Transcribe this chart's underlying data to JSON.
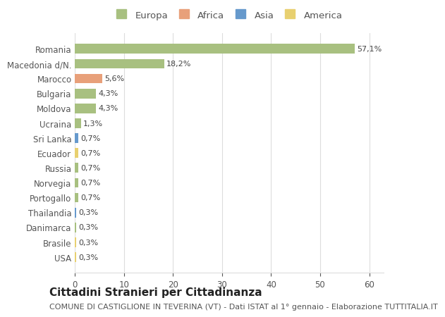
{
  "countries": [
    "Romania",
    "Macedonia d/N.",
    "Marocco",
    "Bulgaria",
    "Moldova",
    "Ucraina",
    "Sri Lanka",
    "Ecuador",
    "Russia",
    "Norvegia",
    "Portogallo",
    "Thailandia",
    "Danimarca",
    "Brasile",
    "USA"
  ],
  "values": [
    57.1,
    18.2,
    5.6,
    4.3,
    4.3,
    1.3,
    0.7,
    0.7,
    0.7,
    0.7,
    0.7,
    0.3,
    0.3,
    0.3,
    0.3
  ],
  "labels": [
    "57,1%",
    "18,2%",
    "5,6%",
    "4,3%",
    "4,3%",
    "1,3%",
    "0,7%",
    "0,7%",
    "0,7%",
    "0,7%",
    "0,7%",
    "0,3%",
    "0,3%",
    "0,3%",
    "0,3%"
  ],
  "colors": [
    "#a8c080",
    "#a8c080",
    "#e8a07a",
    "#a8c080",
    "#a8c080",
    "#a8c080",
    "#6699cc",
    "#e8d070",
    "#a8c080",
    "#a8c080",
    "#a8c080",
    "#6699cc",
    "#a8c080",
    "#e8d070",
    "#e8d070"
  ],
  "legend_labels": [
    "Europa",
    "Africa",
    "Asia",
    "America"
  ],
  "legend_colors": [
    "#a8c080",
    "#e8a07a",
    "#6699cc",
    "#e8d070"
  ],
  "title": "Cittadini Stranieri per Cittadinanza",
  "subtitle": "COMUNE DI CASTIGLIONE IN TEVERINA (VT) - Dati ISTAT al 1° gennaio - Elaborazione TUTTITALIA.IT",
  "xlim": [
    0,
    63
  ],
  "xticks": [
    0,
    10,
    20,
    30,
    40,
    50,
    60
  ],
  "bg_color": "#ffffff",
  "grid_color": "#dddddd",
  "bar_height": 0.65,
  "title_fontsize": 11,
  "subtitle_fontsize": 8,
  "label_fontsize": 8,
  "tick_fontsize": 8.5,
  "legend_fontsize": 9.5
}
